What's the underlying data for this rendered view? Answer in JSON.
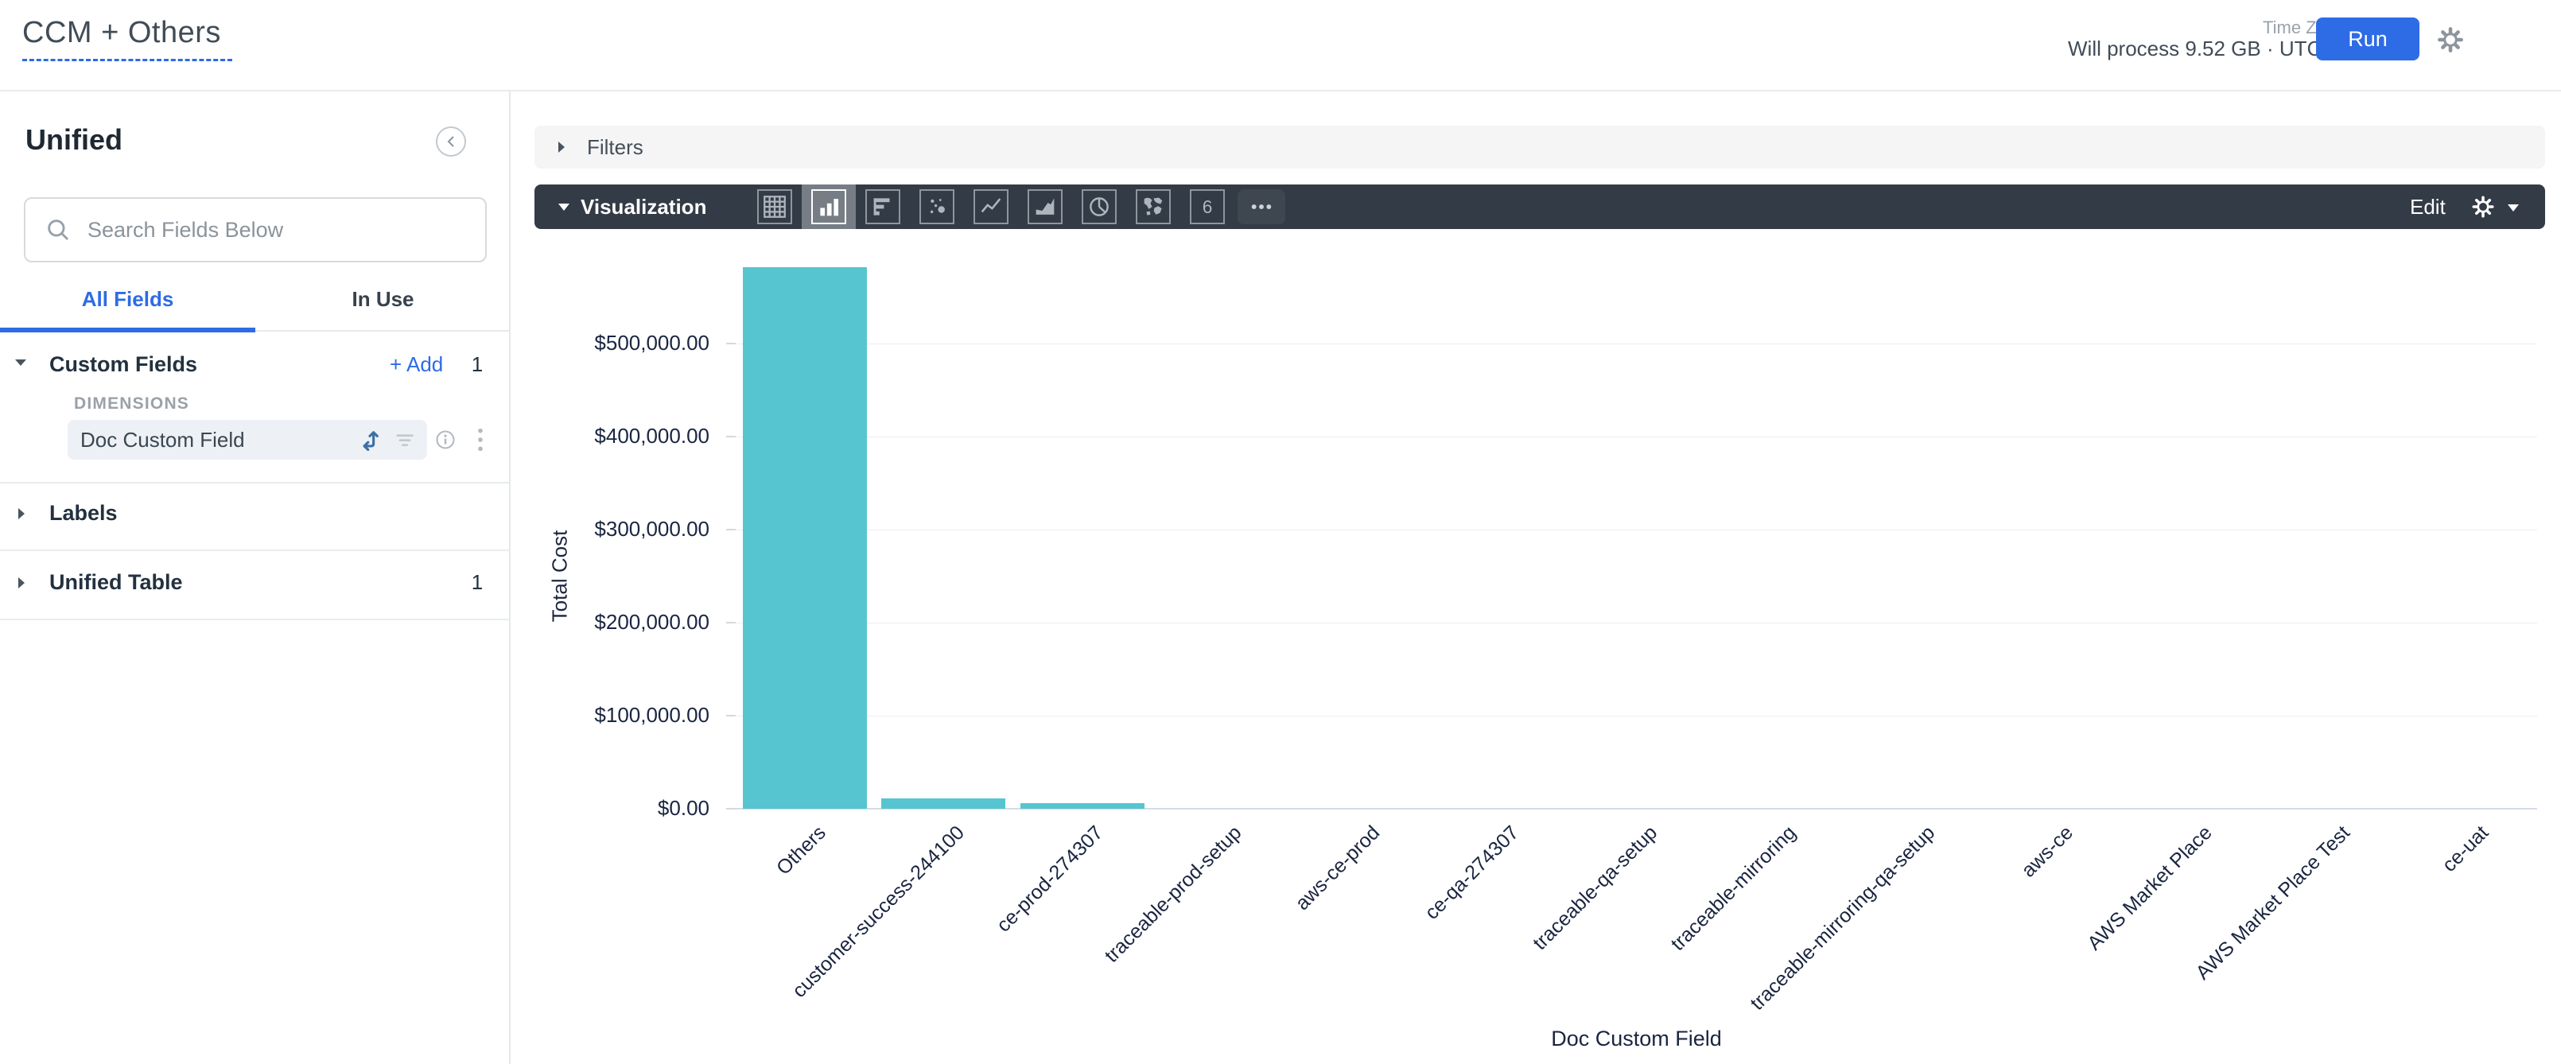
{
  "header": {
    "title": "CCM + Others",
    "process_info": "Will process 9.52 GB · UTC",
    "time_zone_label": "Time Zone",
    "run_label": "Run"
  },
  "sidebar": {
    "title": "Unified",
    "search_placeholder": "Search Fields Below",
    "tabs": [
      {
        "label": "All Fields",
        "active": true
      },
      {
        "label": "In Use",
        "active": false
      }
    ],
    "sections": [
      {
        "label": "Custom Fields",
        "add_label": "+ Add",
        "count": "1"
      },
      {
        "label": "Labels",
        "count": ""
      },
      {
        "label": "Unified Table",
        "count": "1"
      }
    ],
    "group_label": "DIMENSIONS",
    "field_row": {
      "label": "Doc Custom Field"
    }
  },
  "filters": {
    "label": "Filters"
  },
  "viz": {
    "label": "Visualization",
    "edit_label": "Edit",
    "single_value_glyph": "6",
    "icons": [
      {
        "name": "table-icon",
        "selected": false
      },
      {
        "name": "column-chart-icon",
        "selected": true
      },
      {
        "name": "bar-chart-icon",
        "selected": false
      },
      {
        "name": "scatter-chart-icon",
        "selected": false
      },
      {
        "name": "line-chart-icon",
        "selected": false
      },
      {
        "name": "area-chart-icon",
        "selected": false
      },
      {
        "name": "donut-chart-icon",
        "selected": false
      },
      {
        "name": "map-chart-icon",
        "selected": false
      },
      {
        "name": "single-value-icon",
        "selected": false
      },
      {
        "name": "more-icon",
        "selected": false
      }
    ]
  },
  "chart_data": {
    "type": "bar",
    "title": "",
    "xlabel": "Doc Custom Field",
    "ylabel": "Total Cost",
    "categories": [
      "Others",
      "customer-success-244100",
      "ce-prod-274307",
      "traceable-prod-setup",
      "aws-ce-prod",
      "ce-qa-274307",
      "traceable-qa-setup",
      "traceable-mirroring",
      "traceable-mirroring-qa-setup",
      "aws-ce",
      "AWS Market Place",
      "AWS Market Place Test",
      "ce-uat"
    ],
    "values": [
      582000,
      11000,
      6000,
      0,
      0,
      0,
      0,
      0,
      0,
      0,
      0,
      0,
      0
    ],
    "ylim": [
      0,
      500000
    ],
    "yticks": [
      {
        "value": 0,
        "label": "$0.00"
      },
      {
        "value": 100000,
        "label": "$100,000.00"
      },
      {
        "value": 200000,
        "label": "$200,000.00"
      },
      {
        "value": 300000,
        "label": "$300,000.00"
      },
      {
        "value": 400000,
        "label": "$400,000.00"
      },
      {
        "value": 500000,
        "label": "$500,000.00"
      }
    ],
    "bar_color": "#57c5cf",
    "grid": true,
    "legend": "none"
  },
  "colors": {
    "accent_blue": "#2e6be4",
    "run_button": "#2e6ce6",
    "toolbar_dark": "#333b46",
    "toolbar_selected": "#767d85",
    "bar_teal": "#57c5cf",
    "chart_text": "#1a2540"
  }
}
